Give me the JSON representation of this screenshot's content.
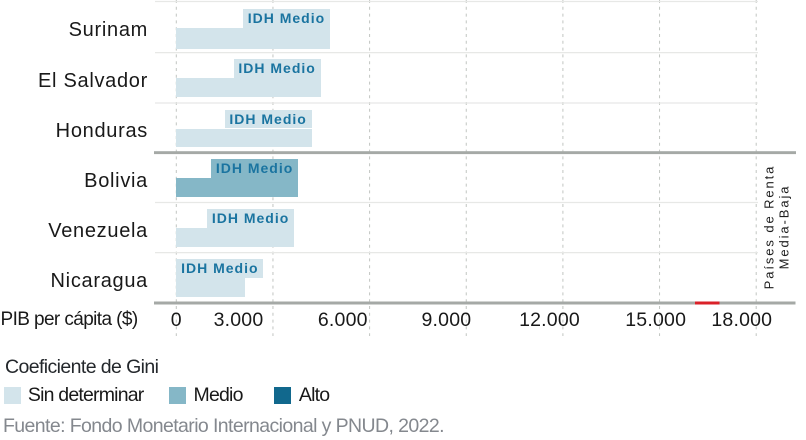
{
  "chart_data": {
    "type": "bar",
    "orientation": "horizontal",
    "xlabel": "PIB per cápita ($)",
    "xlim": [
      0,
      18000
    ],
    "x_tick_values": [
      0,
      3000,
      6000,
      9000,
      12000,
      15000,
      18000
    ],
    "x_tick_labels": [
      "0",
      "3.000",
      "6.000",
      "9.000",
      "12.000",
      "15.000",
      "18.000"
    ],
    "grid": "dashed-vertical",
    "categories": [
      "Surinam",
      "El Salvador",
      "Honduras",
      "Bolivia",
      "Venezuela",
      "Nicaragua"
    ],
    "values": [
      4770,
      4480,
      4200,
      3780,
      3655,
      2135
    ],
    "bar_label": "IDH Medio",
    "gini_category": [
      "Sin determinar",
      "Sin determinar",
      "Sin determinar",
      "Medio",
      "Sin determinar",
      "Sin determinar"
    ],
    "group_divider_after_row": 3,
    "right_group_label": [
      "Países de Renta",
      "Media-Baja"
    ],
    "reference_marker": {
      "from": 16100,
      "to": 16860,
      "color": "#da2128"
    },
    "legend": {
      "title": "Coeficiente de Gini",
      "position": "bottom-left",
      "items": [
        {
          "label": "Sin determinar",
          "color": "#d3e4eb"
        },
        {
          "label": "Medio",
          "color": "#85b7c7"
        },
        {
          "label": "Alto",
          "color": "#11688d"
        }
      ]
    },
    "source": "Fuente: Fondo Monetario Internacional y PNUD, 2022.",
    "colors": {
      "sin_determinar": "#d3e4eb",
      "medio": "#85b7c7",
      "alto": "#11688d",
      "bar_label_text": "#1a74a0",
      "axis_text": "#191919",
      "source_text": "#84888e",
      "thick_line": "#a5a9a6",
      "thin_line": "#e7e8e6",
      "grid_dash": "#c1c5c1"
    }
  }
}
